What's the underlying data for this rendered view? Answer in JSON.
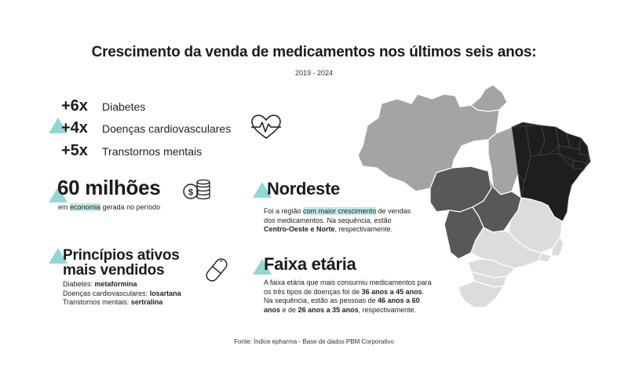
{
  "header": {
    "title": "Crescimento da venda de medicamentos nos últimos seis anos:",
    "period": "2019 - 2024"
  },
  "growth": [
    {
      "value": "+6x",
      "label": "Diabetes"
    },
    {
      "value": "+4x",
      "label": "Doenças cardiovasculares"
    },
    {
      "value": "+5x",
      "label": "Transtornos mentais"
    }
  ],
  "economy": {
    "value": "60 milhões",
    "pre": "em",
    "highlight": "economia",
    "post": "gerada no período"
  },
  "actives": {
    "title_line1": "Princípios ativos",
    "title_line2": "mais vendidos",
    "items": [
      {
        "label": "Diabetes:",
        "drug": "metaformina"
      },
      {
        "label": "Doenças cardiovasculares:",
        "drug": "losartana"
      },
      {
        "label": "Transtornos mentais:",
        "drug": "sertralina"
      }
    ]
  },
  "region": {
    "title": "Nordeste",
    "t1": "Foi a região",
    "highlight": "com maior crescimento",
    "t2": "de vendas",
    "t3": "dos medicamentos. Na sequência, estão",
    "bold": "Centro-Oeste e Norte",
    "t4": ", respectivamente."
  },
  "age": {
    "title": "Faixa etária",
    "l1": "A faixa etária que mais consumiu medicamentos para",
    "l2a": "os três tipos de doenças foi de",
    "l2b": "36 anos a 45 anos",
    "l2c": ".",
    "l3a": "Na sequência, estão as pessoas de",
    "l3b": "46 anos a 60",
    "l4a": "anos",
    "l4b": "e de",
    "l4c": "26 anos a 35 anos",
    "l4d": ", respectivamente."
  },
  "source": "Fonte: Índice epharma - Base de dados PBM Corporativo",
  "icons": {
    "heart": "heart-pulse-icon",
    "coins": "coins-icon",
    "pill": "pill-icon"
  },
  "colors": {
    "accent": "#8fd8d6",
    "highlight": "#bfe9e7",
    "nordeste": "#1e1e1e",
    "centro_oeste": "#585858",
    "norte": "#a4a4a4",
    "sudeste_sul": "#dcdcdc"
  }
}
